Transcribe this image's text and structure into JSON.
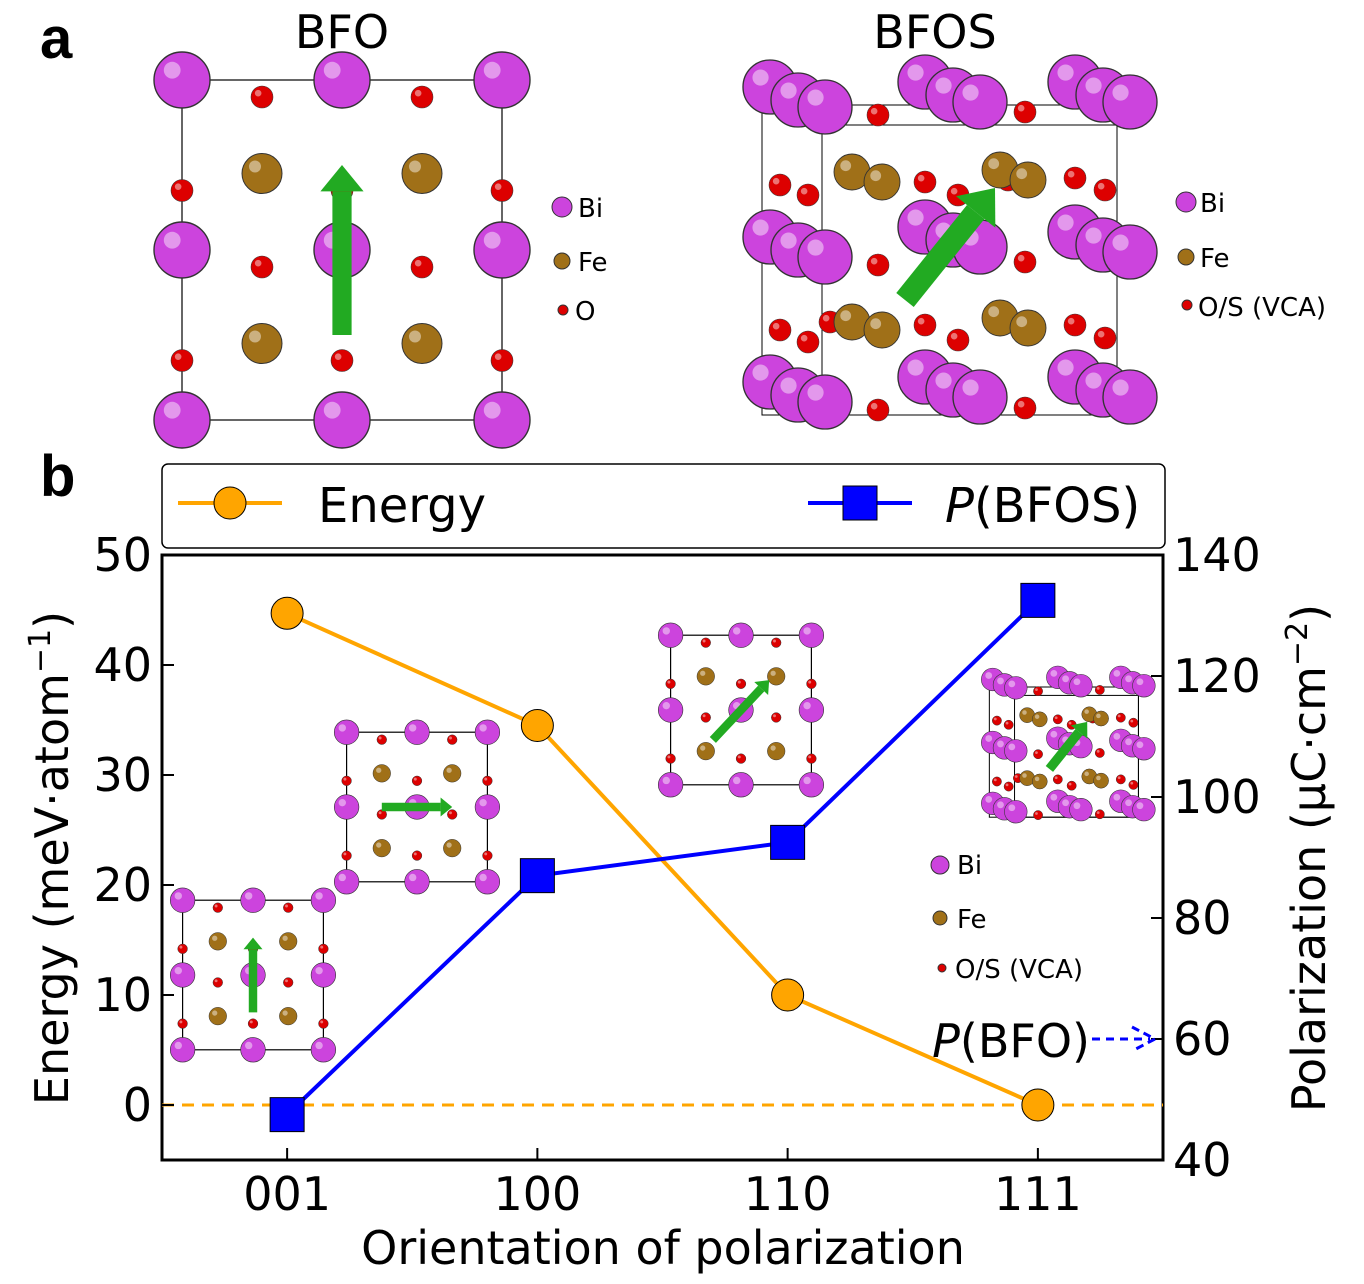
{
  "panel_a": {
    "label": "a",
    "left_title": "BFO",
    "right_title": "BFOS",
    "left_legend": [
      "Bi",
      "Fe",
      "O"
    ],
    "right_legend": [
      "Bi",
      "Fe",
      "O/S (VCA)"
    ]
  },
  "panel_b": {
    "label": "b",
    "inset_legend": [
      "Bi",
      "Fe",
      "O/S (VCA)"
    ],
    "annotation_italic": "P",
    "annotation_rest": "(BFO)",
    "annotation_value": 60
  },
  "colors": {
    "energy": "#FFA500",
    "polarization": "#0000FF",
    "bi": "#CC44DD",
    "fe": "#A07018",
    "o": "#DD0000",
    "arrow": "#22AA22"
  },
  "chart_data": {
    "type": "line",
    "categories": [
      "001",
      "100",
      "110",
      "111"
    ],
    "xlabel": "Orientation of polarization",
    "series": [
      {
        "name": "Energy",
        "axis": "left",
        "marker": "circle",
        "values": [
          44.7,
          34.5,
          10.0,
          0.0
        ]
      },
      {
        "name_italic": "P",
        "name_rest": "(BFOS)",
        "name": "P(BFOS)",
        "axis": "right",
        "marker": "square",
        "values": [
          47.5,
          87.0,
          92.5,
          132.5
        ]
      }
    ],
    "y_left": {
      "label": "Energy (meV·atom",
      "label_sup": "−1",
      "label_end": ")",
      "ylim": [
        -5,
        50
      ],
      "ticks": [
        0,
        10,
        20,
        30,
        40,
        50
      ]
    },
    "y_right": {
      "label": "Polarization (μC·cm",
      "label_sup": "−2",
      "label_end": ")",
      "ylim": [
        40,
        140
      ],
      "ticks": [
        40,
        60,
        80,
        100,
        120,
        140
      ]
    },
    "reference_line": {
      "axis": "left",
      "value": 0,
      "style": "dashed"
    },
    "legend_position": "top",
    "grid": false
  }
}
